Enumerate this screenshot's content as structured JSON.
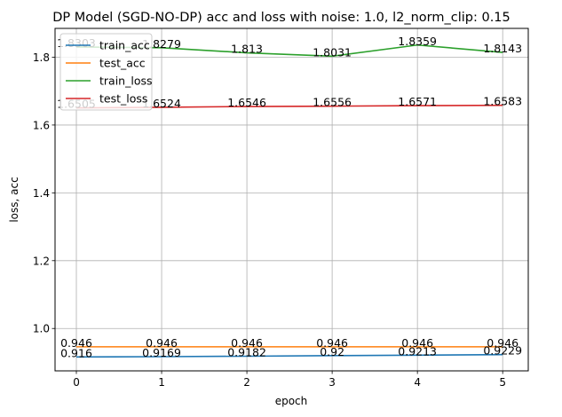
{
  "chart_data": {
    "type": "line",
    "title": "DP Model (SGD-NO-DP) acc and loss with noise: 1.0, l2_norm_clip: 0.15",
    "xlabel": "epoch",
    "ylabel": "loss, acc",
    "x": [
      0,
      1,
      2,
      3,
      4,
      5
    ],
    "xlim": [
      -0.25,
      5.3
    ],
    "ylim": [
      0.875,
      1.885
    ],
    "xticks": [
      "0",
      "1",
      "2",
      "3",
      "4",
      "5"
    ],
    "yticks": [
      {
        "value": 1.0,
        "label": "1.0"
      },
      {
        "value": 1.2,
        "label": "1.2"
      },
      {
        "value": 1.4,
        "label": "1.4"
      },
      {
        "value": 1.6,
        "label": "1.6"
      },
      {
        "value": 1.8,
        "label": "1.8"
      }
    ],
    "grid": true,
    "legend_position": "top-left",
    "series": [
      {
        "name": "train_acc",
        "color": "#1f77b4",
        "values": [
          0.916,
          0.9169,
          0.9182,
          0.92,
          0.9213,
          0.9229
        ],
        "labels": [
          "0.916",
          "0.9169",
          "0.9182",
          "0.92",
          "0.9213",
          "0.9229"
        ]
      },
      {
        "name": "test_acc",
        "color": "#ff7f0e",
        "values": [
          0.946,
          0.946,
          0.946,
          0.946,
          0.946,
          0.946
        ],
        "labels": [
          "0.946",
          "0.946",
          "0.946",
          "0.946",
          "0.946",
          "0.946"
        ]
      },
      {
        "name": "train_loss",
        "color": "#2ca02c",
        "values": [
          1.8303,
          1.8279,
          1.813,
          1.8031,
          1.8359,
          1.8143
        ],
        "labels": [
          "1.8303",
          "1.8279",
          "1.813",
          "1.8031",
          "1.8359",
          "1.8143"
        ]
      },
      {
        "name": "test_loss",
        "color": "#d62728",
        "values": [
          1.6505,
          1.6524,
          1.6546,
          1.6556,
          1.6571,
          1.6583
        ],
        "labels": [
          "1.6505",
          "1.6524",
          "1.6546",
          "1.6556",
          "1.6571",
          "1.6583"
        ]
      }
    ]
  }
}
